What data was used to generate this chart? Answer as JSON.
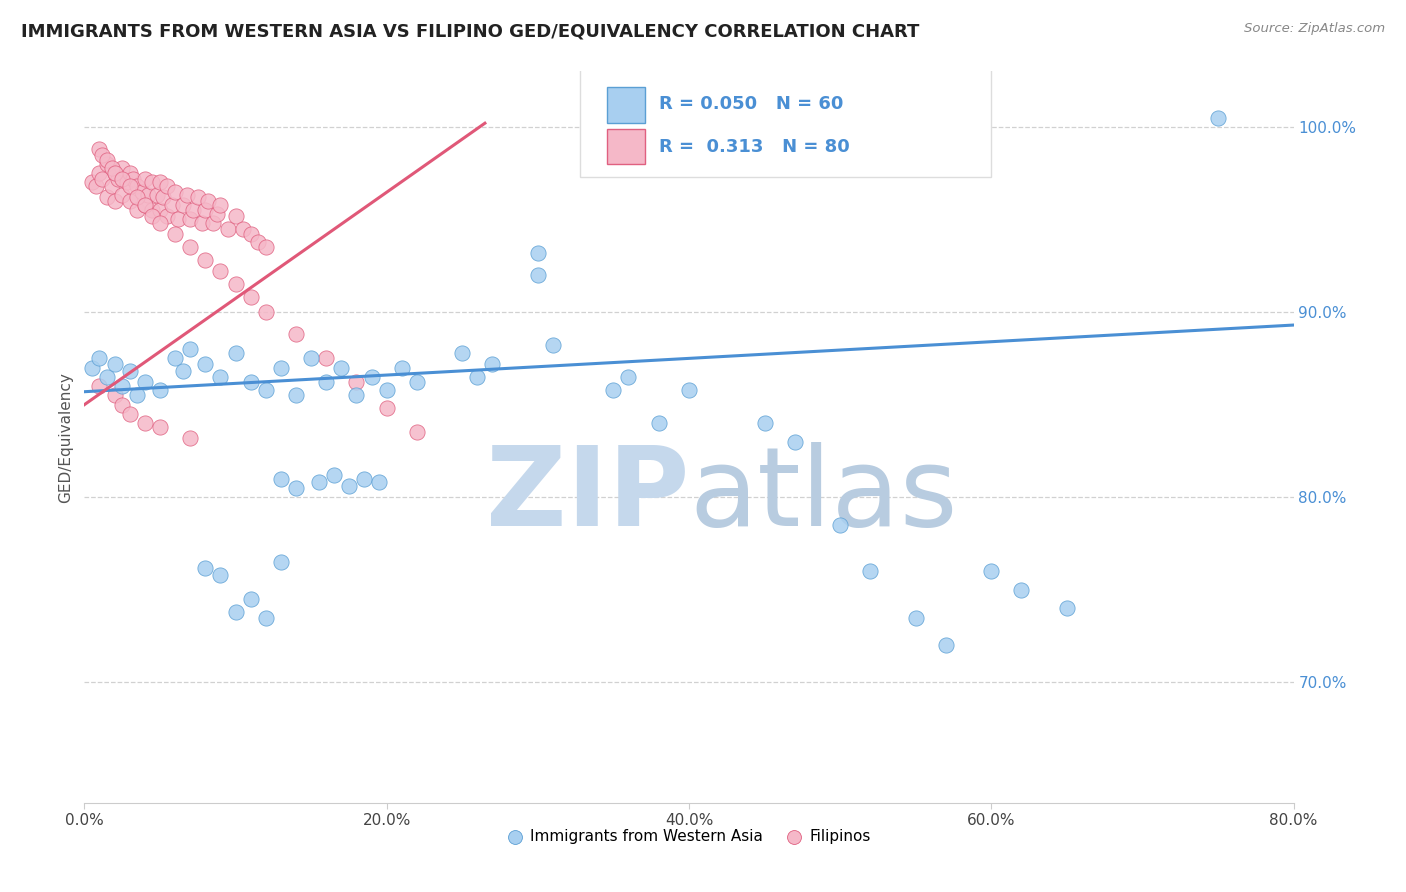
{
  "title": "IMMIGRANTS FROM WESTERN ASIA VS FILIPINO GED/EQUIVALENCY CORRELATION CHART",
  "source": "Source: ZipAtlas.com",
  "xlim": [
    0.0,
    0.8
  ],
  "ylim": [
    0.635,
    1.03
  ],
  "ylabel": "GED/Equivalency",
  "legend_labels": [
    "Immigrants from Western Asia",
    "Filipinos"
  ],
  "r_blue": 0.05,
  "n_blue": 60,
  "r_pink": 0.313,
  "n_pink": 80,
  "blue_color": "#A8CFF0",
  "pink_color": "#F5B8C8",
  "blue_edge_color": "#5B9FD4",
  "pink_edge_color": "#E06080",
  "blue_line_color": "#4A8FD4",
  "pink_line_color": "#E05878",
  "watermark_zip_color": "#C5D8EC",
  "watermark_atlas_color": "#B8CCE0",
  "ytick_color": "#4A8FD4",
  "blue_x": [
    0.005,
    0.01,
    0.015,
    0.02,
    0.025,
    0.03,
    0.035,
    0.04,
    0.05,
    0.06,
    0.065,
    0.07,
    0.08,
    0.09,
    0.1,
    0.11,
    0.12,
    0.13,
    0.14,
    0.15,
    0.16,
    0.17,
    0.18,
    0.19,
    0.2,
    0.21,
    0.22,
    0.25,
    0.26,
    0.27,
    0.13,
    0.14,
    0.155,
    0.165,
    0.175,
    0.185,
    0.195,
    0.3,
    0.31,
    0.35,
    0.36,
    0.38,
    0.4,
    0.45,
    0.47,
    0.5,
    0.52,
    0.55,
    0.57,
    0.6,
    0.62,
    0.65,
    0.08,
    0.09,
    0.1,
    0.11,
    0.12,
    0.13,
    0.75,
    0.3
  ],
  "blue_y": [
    0.87,
    0.875,
    0.865,
    0.872,
    0.86,
    0.868,
    0.855,
    0.862,
    0.858,
    0.875,
    0.868,
    0.88,
    0.872,
    0.865,
    0.878,
    0.862,
    0.858,
    0.87,
    0.855,
    0.875,
    0.862,
    0.87,
    0.855,
    0.865,
    0.858,
    0.87,
    0.862,
    0.878,
    0.865,
    0.872,
    0.81,
    0.805,
    0.808,
    0.812,
    0.806,
    0.81,
    0.808,
    0.92,
    0.882,
    0.858,
    0.865,
    0.84,
    0.858,
    0.84,
    0.83,
    0.785,
    0.76,
    0.735,
    0.72,
    0.76,
    0.75,
    0.74,
    0.762,
    0.758,
    0.738,
    0.745,
    0.735,
    0.765,
    1.005,
    0.932
  ],
  "pink_x": [
    0.005,
    0.008,
    0.01,
    0.012,
    0.015,
    0.015,
    0.018,
    0.02,
    0.02,
    0.022,
    0.025,
    0.025,
    0.028,
    0.03,
    0.03,
    0.032,
    0.035,
    0.035,
    0.038,
    0.04,
    0.04,
    0.042,
    0.045,
    0.045,
    0.048,
    0.05,
    0.05,
    0.052,
    0.055,
    0.055,
    0.058,
    0.06,
    0.062,
    0.065,
    0.068,
    0.07,
    0.072,
    0.075,
    0.078,
    0.08,
    0.082,
    0.085,
    0.088,
    0.09,
    0.095,
    0.1,
    0.105,
    0.11,
    0.115,
    0.12,
    0.01,
    0.012,
    0.015,
    0.018,
    0.02,
    0.025,
    0.03,
    0.035,
    0.04,
    0.045,
    0.05,
    0.06,
    0.07,
    0.08,
    0.09,
    0.1,
    0.11,
    0.12,
    0.14,
    0.16,
    0.18,
    0.2,
    0.22,
    0.01,
    0.02,
    0.025,
    0.03,
    0.04,
    0.05,
    0.07
  ],
  "pink_y": [
    0.97,
    0.968,
    0.975,
    0.972,
    0.98,
    0.962,
    0.968,
    0.975,
    0.96,
    0.972,
    0.978,
    0.963,
    0.97,
    0.975,
    0.96,
    0.972,
    0.968,
    0.955,
    0.965,
    0.972,
    0.958,
    0.963,
    0.97,
    0.955,
    0.963,
    0.97,
    0.955,
    0.962,
    0.968,
    0.952,
    0.958,
    0.965,
    0.95,
    0.958,
    0.963,
    0.95,
    0.955,
    0.962,
    0.948,
    0.955,
    0.96,
    0.948,
    0.953,
    0.958,
    0.945,
    0.952,
    0.945,
    0.942,
    0.938,
    0.935,
    0.988,
    0.985,
    0.982,
    0.978,
    0.975,
    0.972,
    0.968,
    0.962,
    0.958,
    0.952,
    0.948,
    0.942,
    0.935,
    0.928,
    0.922,
    0.915,
    0.908,
    0.9,
    0.888,
    0.875,
    0.862,
    0.848,
    0.835,
    0.86,
    0.855,
    0.85,
    0.845,
    0.84,
    0.838,
    0.832
  ],
  "blue_trend_x": [
    0.0,
    0.8
  ],
  "blue_trend_y": [
    0.857,
    0.893
  ],
  "pink_trend_x": [
    0.0,
    0.265
  ],
  "pink_trend_y": [
    0.85,
    1.002
  ]
}
